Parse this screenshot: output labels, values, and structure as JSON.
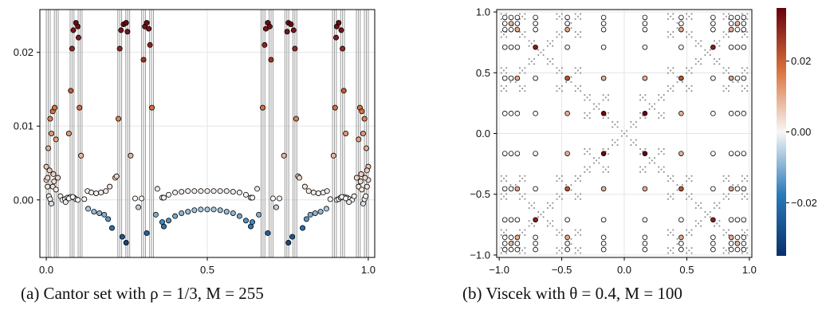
{
  "captions": {
    "a": "(a) Cantor set with ρ = 1/3, M = 255",
    "b": "(b) Viscek with θ = 0.4, M = 100"
  },
  "colormap": {
    "negative": "#08306b",
    "zero": "#f7f7f7",
    "positive": "#67000d"
  },
  "chart_data": [
    {
      "id": "cantor",
      "type": "scatter",
      "title": "",
      "xlabel": "",
      "ylabel": "",
      "xlim": [
        -0.02,
        1.02
      ],
      "ylim": [
        -0.0078,
        0.0258
      ],
      "xticks": [
        0.0,
        0.5,
        1.0
      ],
      "xtick_labels": [
        "0.0",
        "0.5",
        "1.0"
      ],
      "yticks": [
        0.0,
        0.01,
        0.02
      ],
      "ytick_labels": [
        "0.00",
        "0.01",
        "0.02"
      ],
      "grid": true,
      "vertical_lines": [
        0.0,
        0.006,
        0.012,
        0.025,
        0.031,
        0.037,
        0.074,
        0.08,
        0.086,
        0.099,
        0.105,
        0.111,
        0.222,
        0.228,
        0.234,
        0.247,
        0.253,
        0.259,
        0.296,
        0.302,
        0.308,
        0.321,
        0.327,
        0.333,
        0.667,
        0.673,
        0.679,
        0.692,
        0.698,
        0.704,
        0.741,
        0.747,
        0.753,
        0.766,
        0.772,
        0.778,
        0.889,
        0.895,
        0.901,
        0.914,
        0.92,
        0.926,
        0.963,
        0.969,
        0.975,
        0.988,
        0.994,
        1.0
      ],
      "points": [
        [
          0.0,
          0.0027
        ],
        [
          0.004,
          0.0018
        ],
        [
          0.008,
          0.0005
        ],
        [
          0.012,
          0.0001
        ],
        [
          0.016,
          -0.0005
        ],
        [
          0.0,
          0.0045
        ],
        [
          0.006,
          0.007
        ],
        [
          0.012,
          0.011
        ],
        [
          0.016,
          0.009
        ],
        [
          0.022,
          0.0035
        ],
        [
          0.02,
          0.012
        ],
        [
          0.026,
          0.0125
        ],
        [
          0.03,
          0.0082
        ],
        [
          0.036,
          0.003
        ],
        [
          0.044,
          0.0005
        ],
        [
          0.05,
          0.0
        ],
        [
          0.058,
          0.0001
        ],
        [
          0.066,
          0.0003
        ],
        [
          0.075,
          0.0004
        ],
        [
          0.086,
          0.0003
        ],
        [
          0.092,
          0.0001
        ],
        [
          0.098,
          0.0
        ],
        [
          0.06,
          -0.0003
        ],
        [
          0.07,
          0.0002
        ],
        [
          0.082,
          0.0004
        ],
        [
          0.07,
          0.009
        ],
        [
          0.076,
          0.0148
        ],
        [
          0.08,
          0.0205
        ],
        [
          0.084,
          0.023
        ],
        [
          0.092,
          0.024
        ],
        [
          0.098,
          0.0235
        ],
        [
          0.1,
          0.022
        ],
        [
          0.103,
          0.0125
        ],
        [
          0.108,
          0.006
        ],
        [
          0.118,
          0.0001
        ],
        [
          0.128,
          0.0012
        ],
        [
          0.14,
          0.001
        ],
        [
          0.155,
          0.0009
        ],
        [
          0.17,
          0.001
        ],
        [
          0.185,
          0.0012
        ],
        [
          0.197,
          0.0018
        ],
        [
          0.13,
          -0.0012
        ],
        [
          0.148,
          -0.0016
        ],
        [
          0.165,
          -0.0018
        ],
        [
          0.18,
          -0.002
        ],
        [
          0.192,
          -0.0026
        ],
        [
          0.204,
          -0.0038
        ],
        [
          0.214,
          0.003
        ],
        [
          0.218,
          0.0032
        ],
        [
          0.224,
          0.011
        ],
        [
          0.228,
          0.0205
        ],
        [
          0.232,
          0.023
        ],
        [
          0.24,
          0.0238
        ],
        [
          0.248,
          0.024
        ],
        [
          0.252,
          0.0228
        ],
        [
          0.236,
          -0.005
        ],
        [
          0.248,
          -0.0058
        ],
        [
          0.262,
          0.006
        ],
        [
          0.276,
          0.0002
        ],
        [
          0.286,
          -0.001
        ],
        [
          0.296,
          0.0002
        ],
        [
          0.302,
          0.019
        ],
        [
          0.306,
          0.0235
        ],
        [
          0.312,
          0.024
        ],
        [
          0.318,
          0.0232
        ],
        [
          0.322,
          0.021
        ],
        [
          0.328,
          0.0125
        ],
        [
          0.312,
          -0.0045
        ],
        [
          0.34,
          -0.002
        ],
        [
          0.345,
          0.0015
        ],
        [
          0.36,
          0.0003
        ],
        [
          0.36,
          -0.003
        ],
        [
          0.365,
          0.0003
        ],
        [
          0.38,
          0.0007
        ],
        [
          0.4,
          0.001
        ],
        [
          0.42,
          0.0011
        ],
        [
          0.44,
          0.0012
        ],
        [
          0.46,
          0.0012
        ],
        [
          0.48,
          0.0012
        ],
        [
          0.5,
          0.0012
        ],
        [
          0.52,
          0.0012
        ],
        [
          0.54,
          0.0012
        ],
        [
          0.56,
          0.0012
        ],
        [
          0.58,
          0.0011
        ],
        [
          0.6,
          0.001
        ],
        [
          0.62,
          0.0007
        ],
        [
          0.635,
          0.0003
        ],
        [
          0.365,
          -0.0036
        ],
        [
          0.38,
          -0.0028
        ],
        [
          0.4,
          -0.0022
        ],
        [
          0.42,
          -0.0018
        ],
        [
          0.44,
          -0.0016
        ],
        [
          0.46,
          -0.0014
        ],
        [
          0.48,
          -0.0013
        ],
        [
          0.5,
          -0.0013
        ],
        [
          0.52,
          -0.0013
        ],
        [
          0.54,
          -0.0014
        ],
        [
          0.56,
          -0.0016
        ],
        [
          0.58,
          -0.0018
        ],
        [
          0.6,
          -0.0022
        ],
        [
          0.62,
          -0.0028
        ],
        [
          0.635,
          -0.0036
        ],
        [
          0.64,
          0.0003
        ],
        [
          0.655,
          0.0015
        ],
        [
          0.66,
          -0.002
        ],
        [
          0.64,
          -0.003
        ],
        [
          0.672,
          0.0125
        ],
        [
          0.678,
          0.021
        ],
        [
          0.682,
          0.0232
        ],
        [
          0.688,
          0.024
        ],
        [
          0.694,
          0.0235
        ],
        [
          0.698,
          0.019
        ],
        [
          0.688,
          -0.0045
        ],
        [
          0.704,
          0.0002
        ],
        [
          0.714,
          -0.001
        ],
        [
          0.724,
          0.0002
        ],
        [
          0.738,
          0.006
        ],
        [
          0.748,
          0.0228
        ],
        [
          0.752,
          0.024
        ],
        [
          0.76,
          0.0238
        ],
        [
          0.768,
          0.023
        ],
        [
          0.772,
          0.0205
        ],
        [
          0.776,
          0.011
        ],
        [
          0.752,
          -0.0058
        ],
        [
          0.764,
          -0.005
        ],
        [
          0.782,
          0.0032
        ],
        [
          0.786,
          0.003
        ],
        [
          0.796,
          -0.0038
        ],
        [
          0.803,
          0.0018
        ],
        [
          0.815,
          0.0012
        ],
        [
          0.83,
          0.001
        ],
        [
          0.845,
          0.0009
        ],
        [
          0.86,
          0.001
        ],
        [
          0.872,
          0.0012
        ],
        [
          0.808,
          -0.0026
        ],
        [
          0.82,
          -0.002
        ],
        [
          0.835,
          -0.0018
        ],
        [
          0.852,
          -0.0016
        ],
        [
          0.87,
          -0.0012
        ],
        [
          0.882,
          0.0001
        ],
        [
          0.892,
          0.006
        ],
        [
          0.897,
          0.0125
        ],
        [
          0.9,
          0.022
        ],
        [
          0.902,
          0.0235
        ],
        [
          0.908,
          0.024
        ],
        [
          0.916,
          0.023
        ],
        [
          0.92,
          0.0205
        ],
        [
          0.924,
          0.0148
        ],
        [
          0.93,
          0.009
        ],
        [
          0.902,
          0.0
        ],
        [
          0.908,
          0.0001
        ],
        [
          0.914,
          0.0003
        ],
        [
          0.925,
          0.0004
        ],
        [
          0.934,
          0.0003
        ],
        [
          0.942,
          0.0001
        ],
        [
          0.95,
          0.0
        ],
        [
          0.956,
          0.0005
        ],
        [
          0.918,
          0.0004
        ],
        [
          0.93,
          0.0002
        ],
        [
          0.94,
          -0.0003
        ],
        [
          0.964,
          0.003
        ],
        [
          0.97,
          0.0082
        ],
        [
          0.974,
          0.0125
        ],
        [
          0.98,
          0.012
        ],
        [
          0.978,
          0.0035
        ],
        [
          0.984,
          0.009
        ],
        [
          0.988,
          0.011
        ],
        [
          0.994,
          0.007
        ],
        [
          1.0,
          0.0045
        ],
        [
          0.984,
          -0.0005
        ],
        [
          0.988,
          0.0001
        ],
        [
          0.992,
          0.0005
        ],
        [
          0.996,
          0.0018
        ],
        [
          1.0,
          0.0027
        ],
        [
          0.97,
          0.0018
        ],
        [
          0.976,
          0.0025
        ],
        [
          0.98,
          0.0014
        ],
        [
          0.99,
          0.003
        ],
        [
          0.996,
          0.004
        ],
        [
          0.02,
          0.0018
        ],
        [
          0.024,
          0.0025
        ],
        [
          0.004,
          0.003
        ],
        [
          0.01,
          0.004
        ],
        [
          0.03,
          0.0014
        ]
      ]
    },
    {
      "id": "viscek",
      "type": "scatter",
      "title": "",
      "xlabel": "",
      "ylabel": "",
      "xlim": [
        -1.02,
        1.02
      ],
      "ylim": [
        -1.02,
        1.02
      ],
      "xticks": [
        -1.0,
        -0.5,
        0.0,
        0.5,
        1.0
      ],
      "xtick_labels": [
        "−1.0",
        "−0.5",
        "0.0",
        "0.5",
        "1.0"
      ],
      "yticks": [
        -1.0,
        -0.5,
        0.0,
        0.5,
        1.0
      ],
      "ytick_labels": [
        "−1.0",
        "−0.5",
        "0.0",
        "0.5",
        "1.0"
      ],
      "grid": true,
      "fractal_iterations": 3,
      "fractal_theta": 0.4,
      "coords": [
        -0.955,
        -0.905,
        -0.855,
        -0.71,
        -0.455,
        -0.165,
        0.165,
        0.455,
        0.71,
        0.855,
        0.905,
        0.955
      ],
      "colored_points": [
        [
          -0.855,
          0.855,
          0.009
        ],
        [
          -0.71,
          0.71,
          0.03
        ],
        [
          -0.455,
          0.855,
          0.01
        ],
        [
          -0.855,
          0.455,
          0.01
        ],
        [
          -0.455,
          0.455,
          0.022
        ],
        [
          0.855,
          0.855,
          0.009
        ],
        [
          0.71,
          0.71,
          0.03
        ],
        [
          0.455,
          0.855,
          0.01
        ],
        [
          0.855,
          0.455,
          0.01
        ],
        [
          0.455,
          0.455,
          0.022
        ],
        [
          -0.855,
          -0.855,
          0.009
        ],
        [
          -0.71,
          -0.71,
          0.03
        ],
        [
          -0.455,
          -0.855,
          0.01
        ],
        [
          -0.855,
          -0.455,
          0.01
        ],
        [
          -0.455,
          -0.455,
          0.022
        ],
        [
          0.855,
          -0.855,
          0.009
        ],
        [
          0.71,
          -0.71,
          0.03
        ],
        [
          0.455,
          -0.855,
          0.01
        ],
        [
          0.855,
          -0.455,
          0.01
        ],
        [
          0.455,
          -0.455,
          0.022
        ],
        [
          -0.165,
          0.165,
          0.034
        ],
        [
          0.165,
          0.165,
          0.034
        ],
        [
          -0.165,
          -0.165,
          0.034
        ],
        [
          0.165,
          -0.165,
          0.034
        ],
        [
          -0.905,
          0.905,
          0.008
        ],
        [
          0.905,
          0.905,
          0.008
        ],
        [
          -0.905,
          -0.905,
          0.008
        ],
        [
          0.905,
          -0.905,
          0.008
        ],
        [
          -0.165,
          0.455,
          0.009
        ],
        [
          0.165,
          0.455,
          0.009
        ],
        [
          -0.165,
          -0.455,
          0.009
        ],
        [
          0.165,
          -0.455,
          0.009
        ],
        [
          -0.455,
          0.165,
          0.009
        ],
        [
          0.455,
          0.165,
          0.009
        ],
        [
          -0.455,
          -0.165,
          0.009
        ],
        [
          0.455,
          -0.165,
          0.009
        ]
      ],
      "colorbar": {
        "range": [
          -0.035,
          0.035
        ],
        "ticks": [
          -0.02,
          0.0,
          0.02
        ],
        "tick_labels": [
          "−0.02",
          "0.00",
          "0.02"
        ]
      }
    }
  ]
}
